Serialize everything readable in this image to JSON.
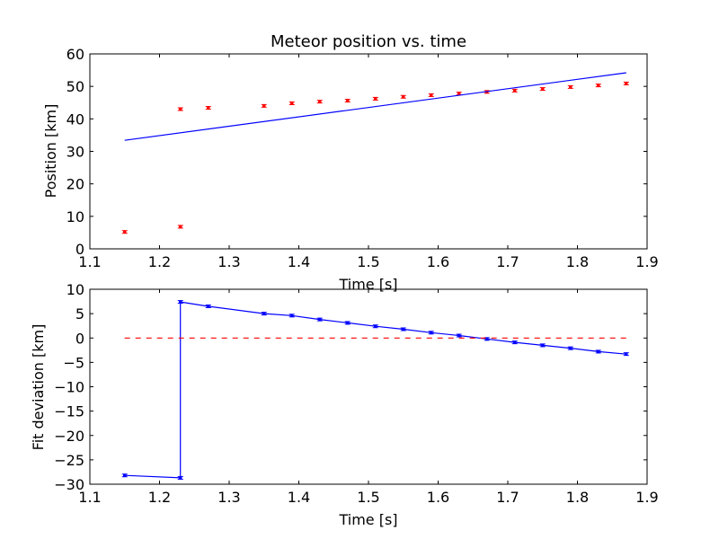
{
  "chart_data": [
    {
      "type": "scatter",
      "title": "Meteor position vs. time",
      "xlabel": "Time [s]",
      "ylabel": "Position [km]",
      "xlim": [
        1.1,
        1.9
      ],
      "ylim": [
        0,
        60
      ],
      "xticks": [
        "1.1",
        "1.2",
        "1.3",
        "1.4",
        "1.5",
        "1.6",
        "1.7",
        "1.8",
        "1.9"
      ],
      "yticks": [
        "0",
        "10",
        "20",
        "30",
        "40",
        "50",
        "60"
      ],
      "grid": false,
      "series": [
        {
          "kind": "points-with-errorbars",
          "color": "#ff0000",
          "x": [
            1.15,
            1.23,
            1.23,
            1.27,
            1.35,
            1.39,
            1.43,
            1.47,
            1.51,
            1.55,
            1.59,
            1.63,
            1.67,
            1.71,
            1.75,
            1.79,
            1.83,
            1.87
          ],
          "y": [
            5.2,
            6.8,
            43.0,
            43.4,
            44.0,
            44.8,
            45.3,
            45.6,
            46.2,
            46.8,
            47.3,
            47.8,
            48.3,
            48.7,
            49.2,
            49.8,
            50.3,
            50.9
          ]
        },
        {
          "kind": "line",
          "color": "#0000ff",
          "x": [
            1.15,
            1.87
          ],
          "y": [
            33.4,
            54.2
          ]
        }
      ]
    },
    {
      "type": "line",
      "title": "",
      "xlabel": "Time [s]",
      "ylabel": "Fit deviation [km]",
      "xlim": [
        1.1,
        1.9
      ],
      "ylim": [
        -30,
        10
      ],
      "xticks": [
        "1.1",
        "1.2",
        "1.3",
        "1.4",
        "1.5",
        "1.6",
        "1.7",
        "1.8",
        "1.9"
      ],
      "yticks": [
        "10",
        "5",
        "0",
        "−5",
        "−10",
        "−15",
        "−20",
        "−25",
        "−30"
      ],
      "ytick_values": [
        10,
        5,
        0,
        -5,
        -10,
        -15,
        -20,
        -25,
        -30
      ],
      "grid": false,
      "series": [
        {
          "kind": "line-with-errorbars",
          "color": "#0000ff",
          "x": [
            1.15,
            1.23,
            1.23,
            1.27,
            1.35,
            1.39,
            1.43,
            1.47,
            1.51,
            1.55,
            1.59,
            1.63,
            1.67,
            1.71,
            1.75,
            1.79,
            1.83,
            1.87
          ],
          "y": [
            -28.2,
            -28.7,
            7.4,
            6.5,
            5.0,
            4.6,
            3.8,
            3.1,
            2.4,
            1.8,
            1.1,
            0.5,
            -0.2,
            -0.9,
            -1.5,
            -2.1,
            -2.8,
            -3.3
          ]
        },
        {
          "kind": "dashed-line",
          "color": "#ff0000",
          "x": [
            1.15,
            1.87
          ],
          "y": [
            0,
            0
          ]
        }
      ]
    }
  ]
}
